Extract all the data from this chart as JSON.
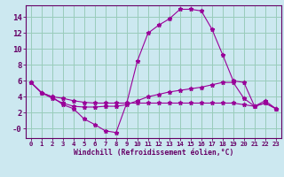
{
  "xlabel": "Windchill (Refroidissement éolien,°C)",
  "bg_color": "#cce8f0",
  "line_color": "#990099",
  "grid_color": "#99ccbb",
  "axis_color": "#660066",
  "spine_color": "#660066",
  "xlim": [
    -0.5,
    23.5
  ],
  "ylim": [
    -1.2,
    15.5
  ],
  "yticks": [
    0,
    2,
    4,
    6,
    8,
    10,
    12,
    14
  ],
  "ytick_labels": [
    "-0",
    "2",
    "4",
    "6",
    "8",
    "10",
    "12",
    "14"
  ],
  "xticks": [
    0,
    1,
    2,
    3,
    4,
    5,
    6,
    7,
    8,
    9,
    10,
    11,
    12,
    13,
    14,
    15,
    16,
    17,
    18,
    19,
    20,
    21,
    22,
    23
  ],
  "series": [
    {
      "x": [
        0,
        1,
        2,
        3,
        4,
        5,
        6,
        7,
        8,
        9,
        10,
        11,
        12,
        13,
        14,
        15,
        16,
        17,
        18,
        19,
        20,
        21,
        22,
        23
      ],
      "y": [
        5.8,
        4.5,
        4.0,
        3.0,
        2.5,
        1.2,
        0.5,
        -0.3,
        -0.5,
        3.2,
        8.5,
        12.0,
        13.0,
        13.8,
        15.0,
        15.0,
        14.8,
        12.5,
        9.3,
        6.0,
        5.8,
        2.8,
        3.5,
        2.5
      ]
    },
    {
      "x": [
        0,
        1,
        2,
        3,
        4,
        5,
        6,
        7,
        8,
        9,
        10,
        11,
        12,
        13,
        14,
        15,
        16,
        17,
        18,
        19,
        20,
        21,
        22,
        23
      ],
      "y": [
        5.8,
        4.5,
        3.8,
        3.2,
        2.8,
        2.7,
        2.7,
        2.8,
        2.8,
        3.0,
        3.5,
        4.0,
        4.3,
        4.6,
        4.8,
        5.0,
        5.2,
        5.5,
        5.8,
        5.8,
        3.8,
        2.8,
        3.2,
        2.5
      ]
    },
    {
      "x": [
        0,
        1,
        2,
        3,
        4,
        5,
        6,
        7,
        8,
        9,
        10,
        11,
        12,
        13,
        14,
        15,
        16,
        17,
        18,
        19,
        20,
        21,
        22,
        23
      ],
      "y": [
        5.8,
        4.5,
        4.0,
        3.8,
        3.5,
        3.3,
        3.2,
        3.2,
        3.2,
        3.2,
        3.2,
        3.2,
        3.2,
        3.2,
        3.2,
        3.2,
        3.2,
        3.2,
        3.2,
        3.2,
        3.0,
        2.8,
        3.2,
        2.5
      ]
    }
  ]
}
